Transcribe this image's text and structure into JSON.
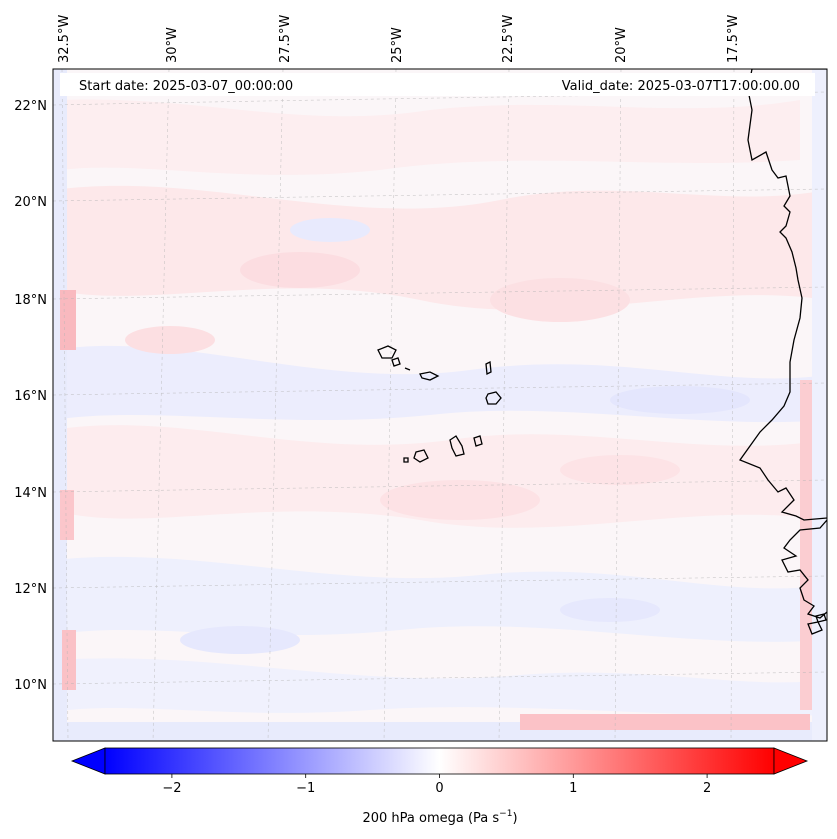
{
  "map": {
    "start_label": "Start date: 2025-03-07_00:00:00",
    "valid_label": "Valid_date: 2025-03-07T17:00:00.00",
    "lon_labels": [
      {
        "lon": -32.5,
        "text": "32.5°W"
      },
      {
        "lon": -30.0,
        "text": "30°W"
      },
      {
        "lon": -27.5,
        "text": "27.5°W"
      },
      {
        "lon": -25.0,
        "text": "25°W"
      },
      {
        "lon": -22.5,
        "text": "22.5°W"
      },
      {
        "lon": -20.0,
        "text": "20°W"
      },
      {
        "lon": -17.5,
        "text": "17.5°W"
      }
    ],
    "lat_labels": [
      {
        "lat": 22,
        "text": "22°N"
      },
      {
        "lat": 20,
        "text": "20°N"
      },
      {
        "lat": 18,
        "text": "18°N"
      },
      {
        "lat": 16,
        "text": "16°N"
      },
      {
        "lat": 14,
        "text": "14°N"
      },
      {
        "lat": 12,
        "text": "12°N"
      },
      {
        "lat": 10,
        "text": "10°N"
      }
    ]
  },
  "colorbar": {
    "label_prefix": "200 hPa omega (Pa s",
    "label_exp": "−1",
    "label_suffix": ")",
    "vmin": -2.5,
    "vmax": 2.5,
    "ticks": [
      {
        "value": -2,
        "text": "−2"
      },
      {
        "value": -1,
        "text": "−1"
      },
      {
        "value": 0,
        "text": "0"
      },
      {
        "value": 1,
        "text": "1"
      },
      {
        "value": 2,
        "text": "2"
      }
    ],
    "colors": {
      "neg": "#0000ff",
      "mid": "#ffffff",
      "pos": "#ff0000"
    }
  }
}
